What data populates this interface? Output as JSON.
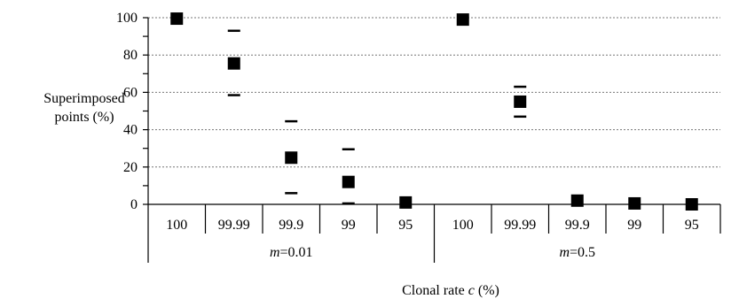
{
  "chart_data": {
    "type": "scatter",
    "title": "",
    "ylabel_lines": [
      "Superimposed",
      "points (%)"
    ],
    "xlabel": {
      "prefix": "Clonal rate ",
      "var": "c",
      "suffix": " (%)"
    },
    "ylim": [
      0,
      100
    ],
    "yticks": [
      "0",
      "20",
      "40",
      "60",
      "80",
      "100"
    ],
    "grid": true,
    "categories": [
      "100",
      "99.99",
      "99.9",
      "99",
      "95",
      "100",
      "99.99",
      "99.9",
      "99",
      "95"
    ],
    "groups": [
      {
        "var": "m",
        "label": "=0.01",
        "start": 0,
        "end": 5
      },
      {
        "var": "m",
        "label": "=0.5",
        "start": 5,
        "end": 10
      }
    ],
    "series": [
      {
        "values": [
          99.5,
          75.5,
          25,
          12,
          1,
          99,
          55,
          2,
          0.5,
          0
        ],
        "upper": [
          null,
          93,
          44.5,
          29.5,
          null,
          null,
          63,
          null,
          null,
          null
        ],
        "lower": [
          null,
          58.5,
          6,
          0.5,
          null,
          null,
          47,
          null,
          null,
          null
        ]
      }
    ]
  }
}
